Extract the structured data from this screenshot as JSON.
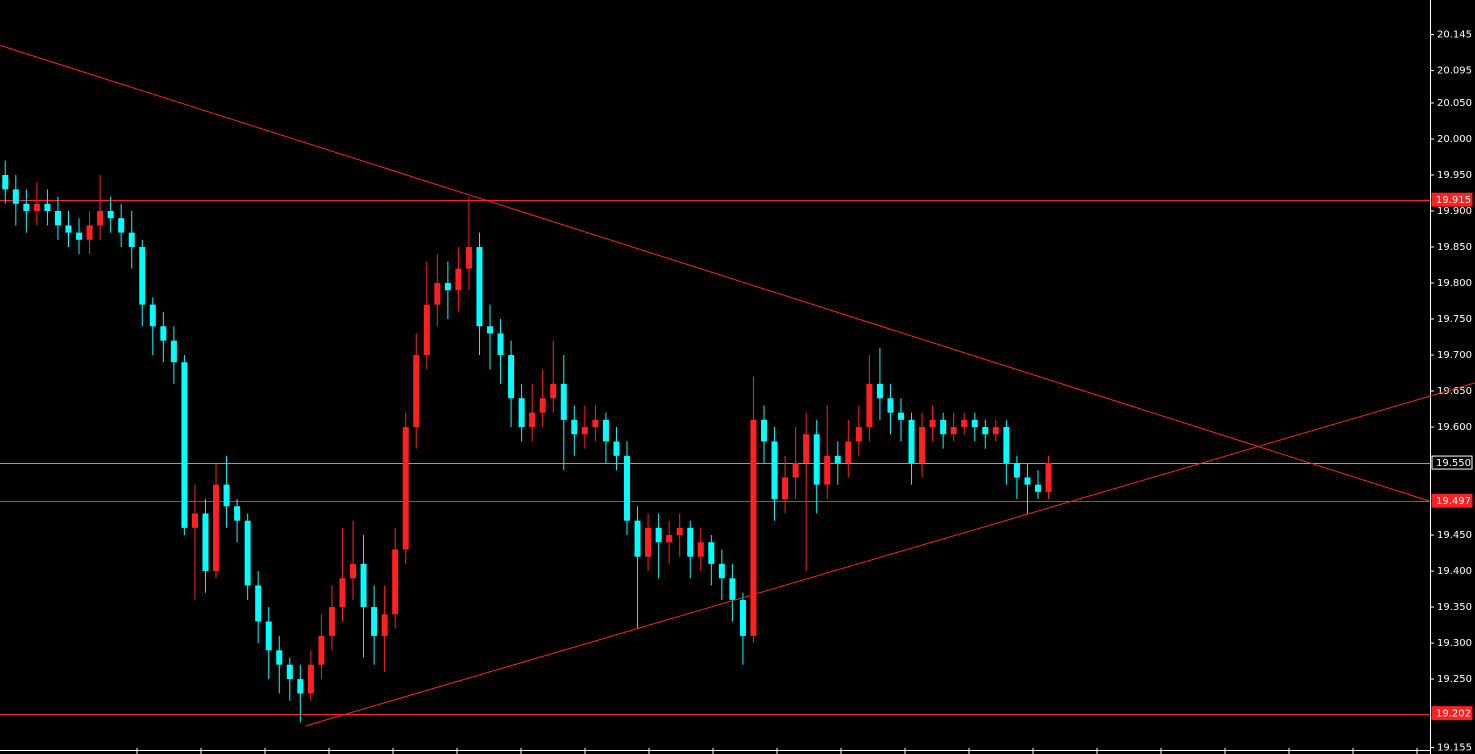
{
  "chart_data": {
    "type": "candlestick",
    "up_color": "#ff2020",
    "down_color": "#00ffff",
    "xlim": [
      -0.5,
      135.2
    ],
    "ylim": [
      19.146,
      20.193
    ],
    "yticks": [
      {
        "value": 20.145,
        "label": "20.145"
      },
      {
        "value": 20.095,
        "label": "20.095"
      },
      {
        "value": 20.05,
        "label": "20.050"
      },
      {
        "value": 20.0,
        "label": "20.000"
      },
      {
        "value": 19.95,
        "label": "19.950"
      },
      {
        "value": 19.9,
        "label": "19.900"
      },
      {
        "value": 19.85,
        "label": "19.850"
      },
      {
        "value": 19.8,
        "label": "19.800"
      },
      {
        "value": 19.75,
        "label": "19.750"
      },
      {
        "value": 19.7,
        "label": "19.700"
      },
      {
        "value": 19.65,
        "label": "19.650"
      },
      {
        "value": 19.6,
        "label": "19.600"
      },
      {
        "value": 19.45,
        "label": "19.450"
      },
      {
        "value": 19.4,
        "label": "19.400"
      },
      {
        "value": 19.35,
        "label": "19.350"
      },
      {
        "value": 19.3,
        "label": "19.300"
      },
      {
        "value": 19.25,
        "label": "19.250"
      },
      {
        "value": 19.155,
        "label": "19.155"
      }
    ],
    "open": [
      19.95,
      19.93,
      19.91,
      19.9,
      19.91,
      19.9,
      19.88,
      19.87,
      19.86,
      19.88,
      19.9,
      19.89,
      19.87,
      19.85,
      19.77,
      19.74,
      19.72,
      19.69,
      19.46,
      19.48,
      19.4,
      19.52,
      19.49,
      19.47,
      19.38,
      19.33,
      19.29,
      19.27,
      19.25,
      19.23,
      19.27,
      19.31,
      19.35,
      19.39,
      19.41,
      19.35,
      19.31,
      19.34,
      19.43,
      19.6,
      19.7,
      19.77,
      19.8,
      19.79,
      19.82,
      19.85,
      19.74,
      19.73,
      19.7,
      19.64,
      19.6,
      19.62,
      19.64,
      19.66,
      19.61,
      19.59,
      19.6,
      19.61,
      19.58,
      19.56,
      19.47,
      19.42,
      19.46,
      19.44,
      19.45,
      19.46,
      19.42,
      19.44,
      19.41,
      19.39,
      19.36,
      19.31,
      19.61,
      19.58,
      19.5,
      19.53,
      19.55,
      19.59,
      19.52,
      19.56,
      19.55,
      19.58,
      19.6,
      19.66,
      19.64,
      19.62,
      19.61,
      19.55,
      19.6,
      19.61,
      19.59,
      19.6,
      19.61,
      19.6,
      19.59,
      19.6,
      19.55,
      19.53,
      19.52,
      19.51
    ],
    "high": [
      19.97,
      19.95,
      19.93,
      19.94,
      19.93,
      19.92,
      19.9,
      19.89,
      19.9,
      19.95,
      19.92,
      19.91,
      19.9,
      19.86,
      19.78,
      19.76,
      19.74,
      19.7,
      19.52,
      19.5,
      19.55,
      19.56,
      19.5,
      19.48,
      19.4,
      19.35,
      19.31,
      19.28,
      19.27,
      19.29,
      19.34,
      19.38,
      19.46,
      19.47,
      19.45,
      19.38,
      19.38,
      19.46,
      19.62,
      19.73,
      19.83,
      19.84,
      19.83,
      19.85,
      19.92,
      19.87,
      19.77,
      19.75,
      19.72,
      19.66,
      19.66,
      19.68,
      19.72,
      19.7,
      19.63,
      19.63,
      19.63,
      19.62,
      19.6,
      19.58,
      19.49,
      19.48,
      19.48,
      19.47,
      19.48,
      19.47,
      19.46,
      19.45,
      19.43,
      19.41,
      19.37,
      19.67,
      19.63,
      19.6,
      19.56,
      19.6,
      19.62,
      19.61,
      19.63,
      19.58,
      19.61,
      19.63,
      19.7,
      19.71,
      19.66,
      19.64,
      19.62,
      19.62,
      19.63,
      19.62,
      19.62,
      19.62,
      19.62,
      19.61,
      19.61,
      19.61,
      19.56,
      19.55,
      19.54,
      19.56
    ],
    "low": [
      19.91,
      19.88,
      19.87,
      19.88,
      19.88,
      19.86,
      19.85,
      19.84,
      19.84,
      19.86,
      19.87,
      19.85,
      19.82,
      19.74,
      19.7,
      19.69,
      19.66,
      19.45,
      19.36,
      19.37,
      19.39,
      19.46,
      19.44,
      19.36,
      19.3,
      19.25,
      19.23,
      19.22,
      19.19,
      19.22,
      19.25,
      19.29,
      19.33,
      19.36,
      19.28,
      19.27,
      19.26,
      19.32,
      19.41,
      19.57,
      19.68,
      19.74,
      19.75,
      19.76,
      19.79,
      19.7,
      19.68,
      19.66,
      19.6,
      19.58,
      19.58,
      19.6,
      19.62,
      19.54,
      19.56,
      19.57,
      19.58,
      19.55,
      19.54,
      19.45,
      19.32,
      19.4,
      19.39,
      19.41,
      19.42,
      19.39,
      19.4,
      19.38,
      19.36,
      19.33,
      19.27,
      19.3,
      19.55,
      19.47,
      19.48,
      19.5,
      19.4,
      19.48,
      19.5,
      19.52,
      19.53,
      19.56,
      19.58,
      19.61,
      19.59,
      19.58,
      19.52,
      19.53,
      19.58,
      19.57,
      19.58,
      19.59,
      19.58,
      19.57,
      19.58,
      19.52,
      19.5,
      19.48,
      19.5,
      19.5
    ],
    "close": [
      19.93,
      19.91,
      19.9,
      19.91,
      19.9,
      19.88,
      19.87,
      19.86,
      19.88,
      19.9,
      19.89,
      19.87,
      19.85,
      19.77,
      19.74,
      19.72,
      19.69,
      19.46,
      19.48,
      19.4,
      19.52,
      19.49,
      19.47,
      19.38,
      19.33,
      19.29,
      19.27,
      19.25,
      19.23,
      19.27,
      19.31,
      19.35,
      19.39,
      19.41,
      19.35,
      19.31,
      19.34,
      19.43,
      19.6,
      19.7,
      19.77,
      19.8,
      19.79,
      19.82,
      19.85,
      19.74,
      19.73,
      19.7,
      19.64,
      19.6,
      19.62,
      19.64,
      19.66,
      19.61,
      19.59,
      19.6,
      19.61,
      19.58,
      19.56,
      19.47,
      19.42,
      19.46,
      19.44,
      19.45,
      19.46,
      19.42,
      19.44,
      19.41,
      19.39,
      19.36,
      19.31,
      19.61,
      19.58,
      19.5,
      19.53,
      19.55,
      19.59,
      19.52,
      19.56,
      19.55,
      19.58,
      19.6,
      19.66,
      19.64,
      19.62,
      19.61,
      19.55,
      19.6,
      19.61,
      19.59,
      19.6,
      19.61,
      19.6,
      19.59,
      19.6,
      19.55,
      19.53,
      19.52,
      19.51,
      19.55
    ],
    "levels": [
      {
        "value": 19.915,
        "label": "19.915",
        "color": "#ff2020"
      },
      {
        "value": 19.55,
        "label": "19.550",
        "color": "#9a9a9a"
      },
      {
        "value": 19.497,
        "label": "19.497",
        "color": "#ff2020"
      },
      {
        "value": 19.202,
        "label": "19.202",
        "color": "#ff2020"
      }
    ],
    "trendlines": [
      {
        "x": [
          -0.5,
          135.2
        ],
        "y": [
          20.13,
          19.497
        ],
        "color": "#ff2020"
      },
      {
        "x": [
          28.5,
          135.2
        ],
        "y": [
          19.185,
          19.643
        ],
        "color": "#ff2020"
      }
    ]
  }
}
